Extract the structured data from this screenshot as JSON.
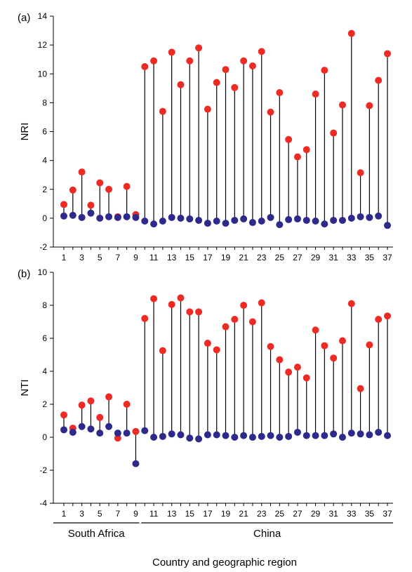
{
  "chart_data": [
    {
      "type": "scatter",
      "panel_label": "(a)",
      "ylabel": "NRI",
      "ylim": [
        -2,
        14
      ],
      "yticks": [
        -2,
        0,
        2,
        4,
        6,
        8,
        10,
        12,
        14
      ],
      "x": [
        1,
        2,
        3,
        4,
        5,
        6,
        7,
        8,
        9,
        10,
        11,
        12,
        13,
        14,
        15,
        16,
        17,
        18,
        19,
        20,
        21,
        22,
        23,
        24,
        25,
        26,
        27,
        28,
        29,
        30,
        31,
        32,
        33,
        34,
        35,
        36,
        37
      ],
      "xtick_labels": [
        "1",
        "3",
        "5",
        "7",
        "9",
        "11",
        "13",
        "15",
        "17",
        "19",
        "21",
        "23",
        "25",
        "27",
        "29",
        "31",
        "33",
        "35",
        "37"
      ],
      "series": [
        {
          "color": "#ee2a24",
          "values": [
            0.95,
            1.95,
            3.2,
            0.9,
            2.45,
            2.0,
            0.1,
            2.2,
            0.25,
            10.5,
            10.9,
            7.4,
            11.5,
            9.25,
            10.9,
            11.8,
            7.55,
            9.4,
            10.3,
            9.05,
            10.9,
            10.55,
            11.55,
            7.35,
            8.7,
            5.45,
            4.25,
            4.75,
            8.6,
            10.25,
            5.9,
            7.85,
            12.8,
            3.15,
            7.8,
            9.55,
            11.4
          ]
        },
        {
          "color": "#2e2a8c",
          "values": [
            0.15,
            0.2,
            0.05,
            0.35,
            0.0,
            0.1,
            0.05,
            0.1,
            0.05,
            -0.2,
            -0.4,
            -0.2,
            0.05,
            0.0,
            -0.05,
            -0.15,
            -0.35,
            -0.2,
            -0.35,
            -0.15,
            -0.05,
            -0.3,
            -0.2,
            0.05,
            -0.45,
            -0.1,
            -0.05,
            -0.15,
            -0.2,
            -0.4,
            -0.15,
            -0.15,
            0.0,
            0.1,
            0.05,
            0.15,
            -0.5
          ]
        }
      ]
    },
    {
      "type": "scatter",
      "panel_label": "(b)",
      "ylabel": "NTI",
      "ylim": [
        -4,
        10
      ],
      "yticks": [
        -4,
        -2,
        0,
        2,
        4,
        6,
        8,
        10
      ],
      "x": [
        1,
        2,
        3,
        4,
        5,
        6,
        7,
        8,
        9,
        10,
        11,
        12,
        13,
        14,
        15,
        16,
        17,
        18,
        19,
        20,
        21,
        22,
        23,
        24,
        25,
        26,
        27,
        28,
        29,
        30,
        31,
        32,
        33,
        34,
        35,
        36,
        37
      ],
      "xtick_labels": [
        "1",
        "3",
        "5",
        "7",
        "9",
        "11",
        "13",
        "15",
        "17",
        "19",
        "21",
        "23",
        "25",
        "27",
        "29",
        "31",
        "33",
        "35",
        "37"
      ],
      "series": [
        {
          "color": "#ee2a24",
          "values": [
            1.35,
            0.55,
            1.95,
            2.2,
            1.2,
            2.45,
            -0.05,
            2.0,
            0.35,
            7.2,
            8.4,
            5.25,
            8.05,
            8.45,
            7.6,
            7.6,
            5.7,
            5.3,
            6.7,
            7.15,
            8.0,
            7.0,
            8.15,
            5.5,
            4.7,
            3.95,
            4.25,
            3.6,
            6.5,
            5.55,
            4.8,
            5.85,
            8.1,
            2.95,
            5.6,
            7.15,
            7.35
          ]
        },
        {
          "color": "#2e2a8c",
          "values": [
            0.45,
            0.3,
            0.65,
            0.5,
            0.25,
            0.65,
            0.25,
            0.25,
            -1.6,
            0.4,
            0.0,
            0.05,
            0.2,
            0.15,
            -0.05,
            -0.1,
            0.15,
            0.15,
            0.1,
            0.0,
            0.1,
            0.0,
            0.05,
            0.1,
            0.0,
            0.05,
            0.3,
            0.1,
            0.1,
            0.1,
            0.2,
            0.0,
            0.25,
            0.2,
            0.15,
            0.3,
            0.1
          ]
        }
      ]
    }
  ],
  "groups": [
    {
      "label": "South Africa",
      "from": 1,
      "to": 9
    },
    {
      "label": "China",
      "from": 10,
      "to": 37
    }
  ],
  "xlabel": "Country and geographic region"
}
